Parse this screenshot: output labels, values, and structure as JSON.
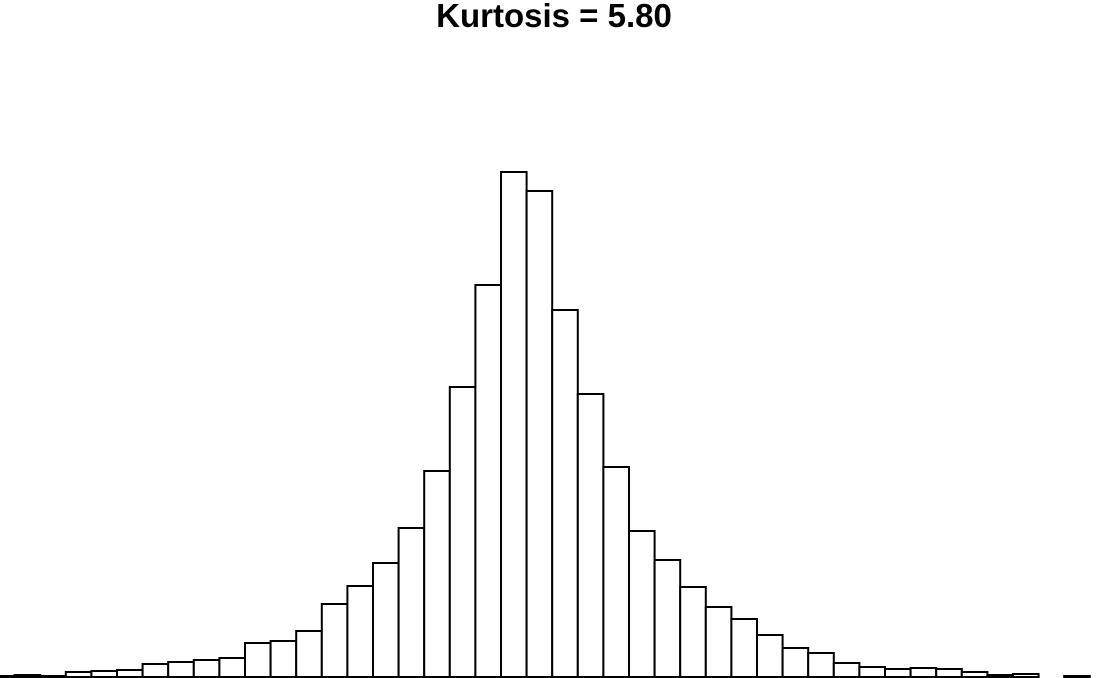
{
  "chart_data": {
    "type": "bar",
    "title": "Kurtosis = 5.80",
    "xlabel": "",
    "ylabel": "",
    "grid": false,
    "axes_shown": false,
    "legend": "none",
    "bar_fill": "#ffffff",
    "bar_edge": "#000000",
    "ylim": [
      0,
      520
    ],
    "values": [
      1,
      2,
      1,
      5,
      6,
      7,
      13,
      15,
      17,
      19,
      34,
      36,
      46,
      73,
      91,
      114,
      149,
      206,
      290,
      392,
      505,
      486,
      367,
      283,
      210,
      146,
      117,
      90,
      70,
      58,
      42,
      29,
      24,
      14,
      10,
      8,
      9,
      8,
      5,
      2,
      3,
      0,
      1
    ]
  }
}
